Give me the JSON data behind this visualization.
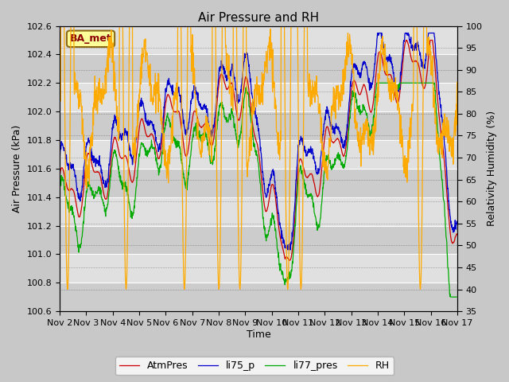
{
  "title": "Air Pressure and RH",
  "ylabel_left": "Air Pressure (kPa)",
  "ylabel_right": "Relativity Humidity (%)",
  "xlabel": "Time",
  "annotation": "BA_met",
  "ylim_left": [
    100.6,
    102.6
  ],
  "ylim_right": [
    35,
    100
  ],
  "yticks_left": [
    100.6,
    100.8,
    101.0,
    101.2,
    101.4,
    101.6,
    101.8,
    102.0,
    102.2,
    102.4,
    102.6
  ],
  "yticks_right": [
    35,
    40,
    45,
    50,
    55,
    60,
    65,
    70,
    75,
    80,
    85,
    90,
    95,
    100
  ],
  "xtick_labels": [
    "Nov 2",
    "Nov 3",
    "Nov 4",
    "Nov 5",
    "Nov 6",
    "Nov 7",
    "Nov 8",
    "Nov 9",
    "Nov 10",
    "Nov 11",
    "Nov 12",
    "Nov 13",
    "Nov 14",
    "Nov 15",
    "Nov 16",
    "Nov 17"
  ],
  "legend_labels": [
    "AtmPres",
    "li75_p",
    "li77_pres",
    "RH"
  ],
  "colors": {
    "AtmPres": "#cc0000",
    "li75_p": "#0000cc",
    "li77_pres": "#00aa00",
    "RH": "#ffaa00"
  },
  "fig_bg": "#c8c8c8",
  "plot_bg_light": "#e0e0e0",
  "plot_bg_dark": "#cccccc",
  "grid_color": "#ffffff",
  "n_points": 1440
}
